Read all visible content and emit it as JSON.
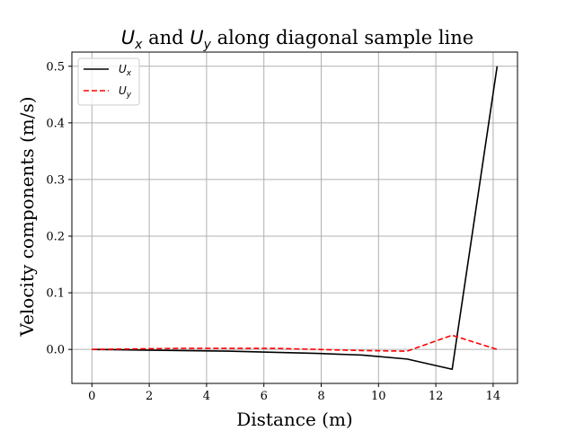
{
  "chart_data": {
    "type": "line",
    "title": {
      "sym1": "U",
      "sub1": "x",
      "mid": " and ",
      "sym2": "U",
      "sub2": "y",
      "rest": " along diagonal sample line"
    },
    "xlabel": "Distance (m)",
    "ylabel": "Velocity components (m/s)",
    "xlim": [
      -0.7,
      14.85
    ],
    "ylim": [
      -0.06,
      0.525
    ],
    "xticks": [
      0,
      2,
      4,
      6,
      8,
      10,
      12,
      14
    ],
    "yticks": [
      0.0,
      0.1,
      0.2,
      0.3,
      0.4,
      0.5
    ],
    "ytick_labels": [
      "0.0",
      "0.1",
      "0.2",
      "0.3",
      "0.4",
      "0.5"
    ],
    "grid": true,
    "legend_position": "upper-left",
    "series": [
      {
        "name": "U_x",
        "legend_symbol": "U",
        "legend_sub": "x",
        "color": "#000000",
        "dash": "solid",
        "x": [
          0,
          1.57,
          3.14,
          4.71,
          6.28,
          7.86,
          9.43,
          11.0,
          12.57,
          14.14
        ],
        "y": [
          0.0,
          -0.001,
          -0.002,
          -0.003,
          -0.005,
          -0.007,
          -0.01,
          -0.017,
          -0.035,
          0.5
        ]
      },
      {
        "name": "U_y",
        "legend_symbol": "U",
        "legend_sub": "y",
        "color": "#ff0000",
        "dash": "dashed",
        "x": [
          0,
          1.57,
          3.14,
          4.71,
          6.28,
          7.86,
          9.43,
          11.0,
          12.57,
          14.14
        ],
        "y": [
          0.0,
          0.001,
          0.002,
          0.002,
          0.002,
          0.0,
          -0.002,
          -0.003,
          0.025,
          0.0
        ]
      }
    ]
  }
}
